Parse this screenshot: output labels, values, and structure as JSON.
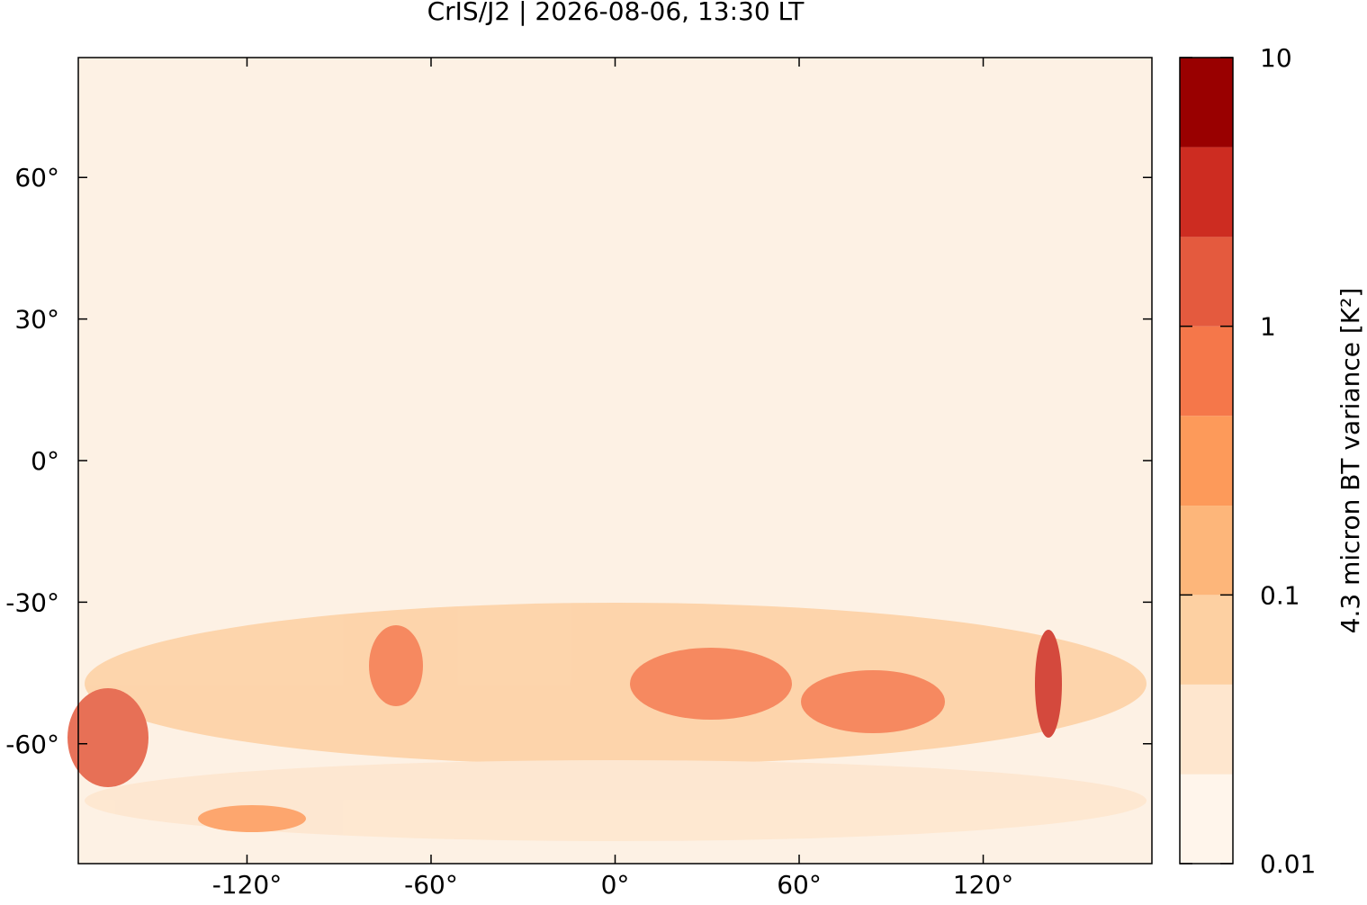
{
  "chart_data": {
    "type": "map",
    "title": "CrIS/J2 | 2026-08-06, 13:30 LT",
    "xlim": [
      -175,
      175
    ],
    "ylim": [
      -85.4,
      85.4
    ],
    "xticks": [
      {
        "value": -120,
        "label": "-120°"
      },
      {
        "value": -60,
        "label": "-60°"
      },
      {
        "value": 0,
        "label": "0°"
      },
      {
        "value": 60,
        "label": "60°"
      },
      {
        "value": 120,
        "label": "120°"
      }
    ],
    "yticks": [
      {
        "value": -60,
        "label": "-60°"
      },
      {
        "value": -30,
        "label": "-30°"
      },
      {
        "value": 0,
        "label": "0°"
      },
      {
        "value": 30,
        "label": "30°"
      },
      {
        "value": 60,
        "label": "60°"
      }
    ],
    "colorbar": {
      "label": "4.3 micron BT variance [K²]",
      "log": true,
      "lim": [
        0.01,
        10
      ],
      "levels": [
        0.01,
        0.0215,
        0.0464,
        0.1,
        0.215,
        0.464,
        1,
        2.15,
        4.64,
        10
      ],
      "colors": [
        "#fff5eb",
        "#fee6ce",
        "#fdd0a2",
        "#fdb67a",
        "#fd9a5a",
        "#f5774a",
        "#e45a3e",
        "#cd2c21",
        "#990000"
      ],
      "ticks": [
        0.01,
        0.1,
        1,
        10
      ]
    }
  }
}
